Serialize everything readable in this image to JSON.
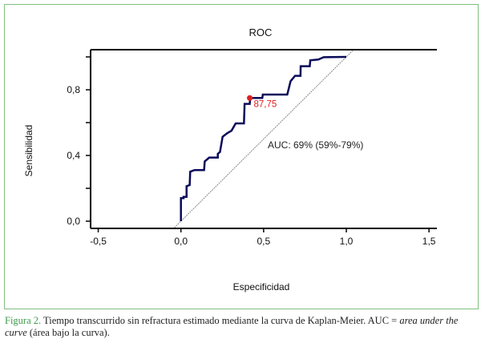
{
  "chart_data": {
    "type": "line",
    "title": "ROC",
    "xlabel": "Especificidad",
    "ylabel": "Sensibilidad",
    "xlim": [
      -0.55,
      1.55
    ],
    "ylim": [
      -0.04,
      1.05
    ],
    "x_ticks": [
      -0.5,
      0.0,
      0.5,
      1.0,
      1.5
    ],
    "x_tick_labels": [
      "-0,5",
      "0,0",
      "0,5",
      "1,0",
      "1,5"
    ],
    "y_ticks": [
      0.0,
      0.2,
      0.4,
      0.6,
      0.8,
      1.0
    ],
    "y_tick_labels": [
      "0,0",
      "",
      "0,4",
      "",
      "0,8",
      ""
    ],
    "grid": false,
    "series": [
      {
        "name": "ROC curve",
        "color": "#0a0a5a",
        "x": [
          0,
          0,
          0.016,
          0.016,
          0.034,
          0.034,
          0.053,
          0.056,
          0.082,
          0.14,
          0.144,
          0.171,
          0.223,
          0.223,
          0.236,
          0.252,
          0.279,
          0.306,
          0.331,
          0.381,
          0.385,
          0.416,
          0.419,
          0.492,
          0.495,
          0.643,
          0.663,
          0.69,
          0.723,
          0.724,
          0.779,
          0.782,
          0.831,
          0.863,
          1.0
        ],
        "y": [
          0,
          0.14,
          0.14,
          0.148,
          0.148,
          0.213,
          0.22,
          0.301,
          0.311,
          0.311,
          0.364,
          0.387,
          0.387,
          0.41,
          0.421,
          0.514,
          0.535,
          0.551,
          0.595,
          0.595,
          0.714,
          0.714,
          0.75,
          0.75,
          0.771,
          0.771,
          0.852,
          0.885,
          0.885,
          0.943,
          0.943,
          0.979,
          0.984,
          0.998,
          1.0
        ]
      },
      {
        "name": "reference diagonal",
        "color": "#888888",
        "x": [
          -0.04,
          1.04
        ],
        "y": [
          -0.04,
          1.04
        ]
      }
    ],
    "cutoff_point": {
      "x": 0.416,
      "y": 0.75,
      "label": "87,75",
      "color": "#e02020"
    },
    "annotation": "AUC: 69% (59%-79%)"
  },
  "caption": {
    "figure_label": "Figura 2.",
    "text": " Tiempo transcurrido sin refractura estimado mediante la curva de Kaplan-Meier. AUC = ",
    "italic": "area under the curve",
    "tail": " (área bajo la curva)."
  }
}
